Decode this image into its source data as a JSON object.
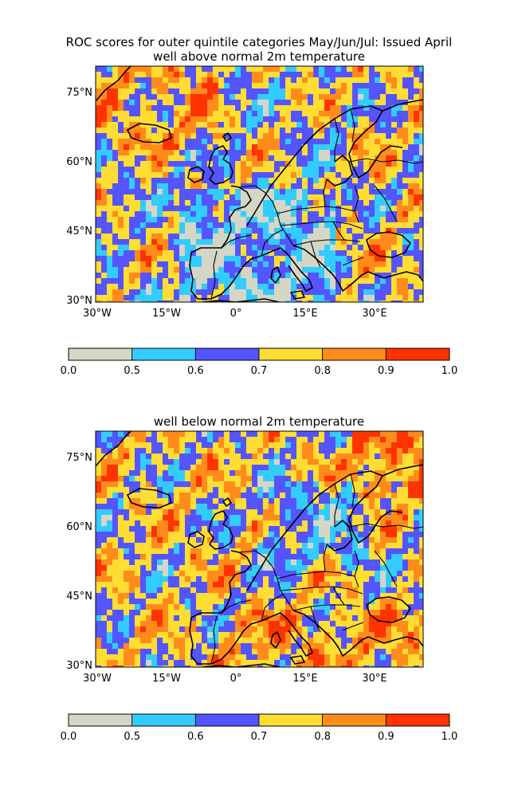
{
  "figure": {
    "title_line1": "ROC scores for outer quintile categories May/Jun/Jul: Issued April"
  },
  "palette": {
    "bins": [
      0.0,
      0.5,
      0.6,
      0.7,
      0.8,
      0.9,
      1.0
    ],
    "colors": [
      "#d6d6c6",
      "#33ccff",
      "#5555ff",
      "#ffdd33",
      "#ff8c1a",
      "#ff3300"
    ]
  },
  "axes": {
    "lat_ticks": [
      "75°N",
      "60°N",
      "45°N",
      "30°N"
    ],
    "lon_ticks": [
      "30°W",
      "15°W",
      "0°",
      "15°E",
      "30°E"
    ]
  },
  "panels": [
    {
      "title": "well above normal 2m temperature",
      "colorbar_labels": [
        "0.0",
        "0.5",
        "0.6",
        "0.7",
        "0.8",
        "0.9",
        "1.0"
      ]
    },
    {
      "title": "well below normal 2m temperature",
      "colorbar_labels": [
        "0.0",
        "0.5",
        "0.6",
        "0.7",
        "0.8",
        "0.9",
        "1.0"
      ]
    }
  ]
}
